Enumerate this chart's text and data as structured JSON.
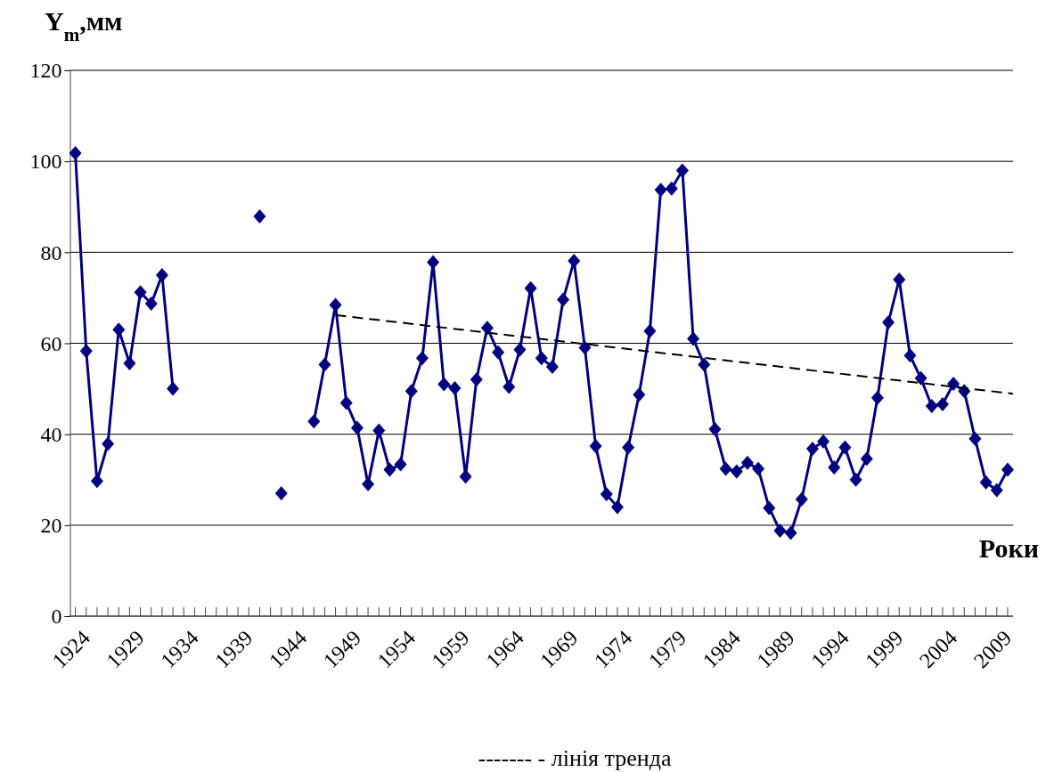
{
  "chart_data": {
    "type": "line",
    "ylabel": "Y$_{m}$,мм",
    "xlabel": "Роки",
    "annotations": [
      "------- - лінія тренда"
    ],
    "marker": "diamond",
    "line_style": "solid",
    "x": [
      1924,
      1925,
      1926,
      1927,
      1928,
      1929,
      1930,
      1931,
      1932,
      1933,
      1934,
      1935,
      1936,
      1937,
      1938,
      1939,
      1940,
      1941,
      1942,
      1943,
      1944,
      1945,
      1946,
      1947,
      1948,
      1949,
      1950,
      1951,
      1952,
      1953,
      1954,
      1955,
      1956,
      1957,
      1958,
      1959,
      1960,
      1961,
      1962,
      1963,
      1964,
      1965,
      1966,
      1967,
      1968,
      1969,
      1970,
      1971,
      1972,
      1973,
      1974,
      1975,
      1976,
      1977,
      1978,
      1979,
      1980,
      1981,
      1982,
      1983,
      1984,
      1985,
      1986,
      1987,
      1988,
      1989,
      1990,
      1991,
      1992,
      1993,
      1994,
      1995,
      1996,
      1997,
      1998,
      1999,
      2000,
      2001,
      2002,
      2003,
      2004,
      2005,
      2006,
      2007,
      2008,
      2009,
      2010
    ],
    "series": [
      {
        "color": "#000080",
        "values": [
          101.8,
          58.3,
          29.7,
          37.9,
          63,
          55.6,
          71.2,
          68.7,
          75,
          50,
          null,
          null,
          null,
          null,
          null,
          null,
          null,
          87.9,
          null,
          27,
          null,
          null,
          42.8,
          55.3,
          68.4,
          46.9,
          41.4,
          29,
          40.8,
          32.2,
          33.4,
          49.5,
          56.7,
          77.8,
          51,
          50.1,
          30.7,
          52,
          63.4,
          58,
          50.4,
          58.6,
          72.1,
          56.7,
          54.8,
          69.6,
          78.1,
          59,
          37.4,
          26.8,
          24,
          37.1,
          48.7,
          62.7,
          93.7,
          94,
          98,
          61,
          55.3,
          41.1,
          32.4,
          31.8,
          33.7,
          32.4,
          23.8,
          18.8,
          18.3,
          25.7,
          36.8,
          38.4,
          32.7,
          37.1,
          30,
          34.6,
          48,
          64.6,
          74,
          57.3,
          52.3,
          46.2,
          46.6,
          51.1,
          49.5,
          39,
          29.4,
          27.7,
          32.2
        ]
      },
      {
        "type": "line",
        "color": "#000000",
        "marker": "none",
        "line_style": "dashed",
        "x": [
          1948,
          2010.5
        ],
        "values": [
          66.2,
          48.9
        ]
      }
    ],
    "xlim": [
      1923.5,
      2010.5
    ],
    "xticks": [
      1924,
      {
        "value": 1925,
        "label": null
      },
      {
        "value": 1926,
        "label": null
      },
      {
        "value": 1927,
        "label": null
      },
      {
        "value": 1928,
        "label": null
      },
      1929,
      {
        "value": 1930,
        "label": null
      },
      {
        "value": 1931,
        "label": null
      },
      {
        "value": 1932,
        "label": null
      },
      {
        "value": 1933,
        "label": null
      },
      1934,
      {
        "value": 1935,
        "label": null
      },
      {
        "value": 1936,
        "label": null
      },
      {
        "value": 1937,
        "label": null
      },
      {
        "value": 1938,
        "label": null
      },
      1939,
      {
        "value": 1940,
        "label": null
      },
      {
        "value": 1941,
        "label": null
      },
      {
        "value": 1942,
        "label": null
      },
      {
        "value": 1943,
        "label": null
      },
      1944,
      {
        "value": 1945,
        "label": null
      },
      {
        "value": 1946,
        "label": null
      },
      {
        "value": 1947,
        "label": null
      },
      {
        "value": 1948,
        "label": null
      },
      1949,
      {
        "value": 1950,
        "label": null
      },
      {
        "value": 1951,
        "label": null
      },
      {
        "value": 1952,
        "label": null
      },
      {
        "value": 1953,
        "label": null
      },
      1954,
      {
        "value": 1955,
        "label": null
      },
      {
        "value": 1956,
        "label": null
      },
      {
        "value": 1957,
        "label": null
      },
      {
        "value": 1958,
        "label": null
      },
      1959,
      {
        "value": 1960,
        "label": null
      },
      {
        "value": 1961,
        "label": null
      },
      {
        "value": 1962,
        "label": null
      },
      {
        "value": 1963,
        "label": null
      },
      1964,
      {
        "value": 1965,
        "label": null
      },
      {
        "value": 1966,
        "label": null
      },
      {
        "value": 1967,
        "label": null
      },
      {
        "value": 1968,
        "label": null
      },
      1969,
      {
        "value": 1970,
        "label": null
      },
      {
        "value": 1971,
        "label": null
      },
      {
        "value": 1972,
        "label": null
      },
      {
        "value": 1973,
        "label": null
      },
      1974,
      {
        "value": 1975,
        "label": null
      },
      {
        "value": 1976,
        "label": null
      },
      {
        "value": 1977,
        "label": null
      },
      {
        "value": 1978,
        "label": null
      },
      1979,
      {
        "value": 1980,
        "label": null
      },
      {
        "value": 1981,
        "label": null
      },
      {
        "value": 1982,
        "label": null
      },
      {
        "value": 1983,
        "label": null
      },
      1984,
      {
        "value": 1985,
        "label": null
      },
      {
        "value": 1986,
        "label": null
      },
      {
        "value": 1987,
        "label": null
      },
      {
        "value": 1988,
        "label": null
      },
      1989,
      {
        "value": 1990,
        "label": null
      },
      {
        "value": 1991,
        "label": null
      },
      {
        "value": 1992,
        "label": null
      },
      {
        "value": 1993,
        "label": null
      },
      1994,
      {
        "value": 1995,
        "label": null
      },
      {
        "value": 1996,
        "label": null
      },
      {
        "value": 1997,
        "label": null
      },
      {
        "value": 1998,
        "label": null
      },
      1999,
      {
        "value": 2000,
        "label": null
      },
      {
        "value": 2001,
        "label": null
      },
      {
        "value": 2002,
        "label": null
      },
      {
        "value": 2003,
        "label": null
      },
      2004,
      {
        "value": 2005,
        "label": null
      },
      {
        "value": 2006,
        "label": null
      },
      {
        "value": 2007,
        "label": null
      },
      {
        "value": 2008,
        "label": null
      },
      2009,
      {
        "value": 2010,
        "label": null
      }
    ],
    "ylim": [
      0,
      120
    ],
    "yticks": [
      0,
      20,
      40,
      60,
      80,
      100,
      120
    ],
    "grid": "y"
  }
}
